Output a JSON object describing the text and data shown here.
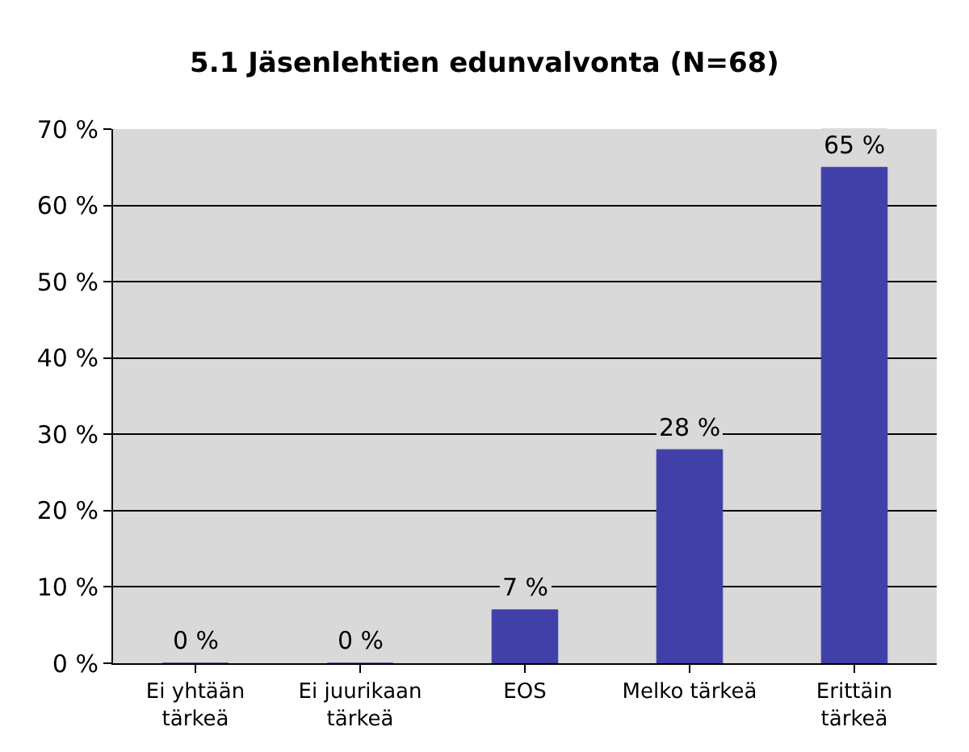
{
  "chart_data": {
    "type": "bar",
    "title": "5.1 Jäsenlehtien edunvalvonta (N=68)",
    "categories": [
      "Ei yhtään\ntärkeä",
      "Ei juurikaan\ntärkeä",
      "EOS",
      "Melko tärkeä",
      "Erittäin\ntärkeä"
    ],
    "values": [
      0,
      0,
      7,
      28,
      65
    ],
    "value_labels": [
      "0 %",
      "0 %",
      "7 %",
      "28 %",
      "65 %"
    ],
    "color": "#4040a8",
    "ylim": [
      0,
      70
    ],
    "yticks": [
      {
        "value": 0,
        "label": "0 %"
      },
      {
        "value": 10,
        "label": "10 %"
      },
      {
        "value": 20,
        "label": "20 %"
      },
      {
        "value": 30,
        "label": "30 %"
      },
      {
        "value": 40,
        "label": "40 %"
      },
      {
        "value": 50,
        "label": "50 %"
      },
      {
        "value": 60,
        "label": "60 %"
      },
      {
        "value": 70,
        "label": "70 %"
      }
    ],
    "grid": "y",
    "legend": false
  }
}
